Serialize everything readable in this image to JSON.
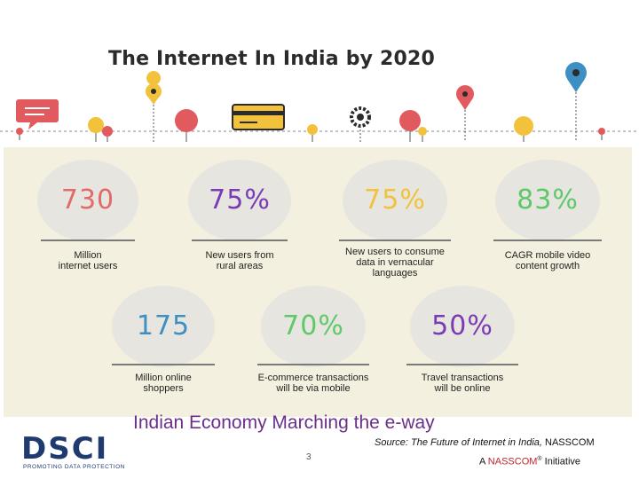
{
  "infographic": {
    "title": "The Internet In India by 2020",
    "stats_row1": [
      {
        "value": "730",
        "label1": "Million",
        "label2": "internet users",
        "label3": "",
        "color": "#e26a6a"
      },
      {
        "value": "75%",
        "label1": "New users from",
        "label2": "rural areas",
        "label3": "",
        "color": "#7a3bb5"
      },
      {
        "value": "75%",
        "label1": "New users to consume",
        "label2": "data in vernacular",
        "label3": "languages",
        "color": "#f2c23c"
      },
      {
        "value": "83%",
        "label1": "CAGR mobile video",
        "label2": "content growth",
        "label3": "",
        "color": "#5fc86a"
      }
    ],
    "stats_row2": [
      {
        "value": "175",
        "label1": "Million online",
        "label2": "shoppers",
        "color": "#3d8fc4"
      },
      {
        "value": "70%",
        "label1": "E-commerce transactions",
        "label2": "will be via mobile",
        "color": "#5fc86a"
      },
      {
        "value": "50%",
        "label1": "Travel transactions",
        "label2": "will be online",
        "color": "#7a3bb5"
      }
    ],
    "colors": {
      "red": "#e05a5e",
      "yellow": "#f2c23c",
      "blue": "#3d8fc4",
      "dark": "#2b2b2b"
    }
  },
  "footer": {
    "heading": "Indian Economy Marching the e-way",
    "page_number": "3",
    "source_label": "Source:",
    "source_title": "The Future of Internet in India,",
    "source_org": "NASSCOM",
    "initiative_prefix": "A",
    "initiative_brand": "NASSCOM",
    "initiative_suffix": "Initiative",
    "registered_mark": "®"
  },
  "logo": {
    "text": "DSCI",
    "tagline": "PROMOTING DATA PROTECTION"
  }
}
